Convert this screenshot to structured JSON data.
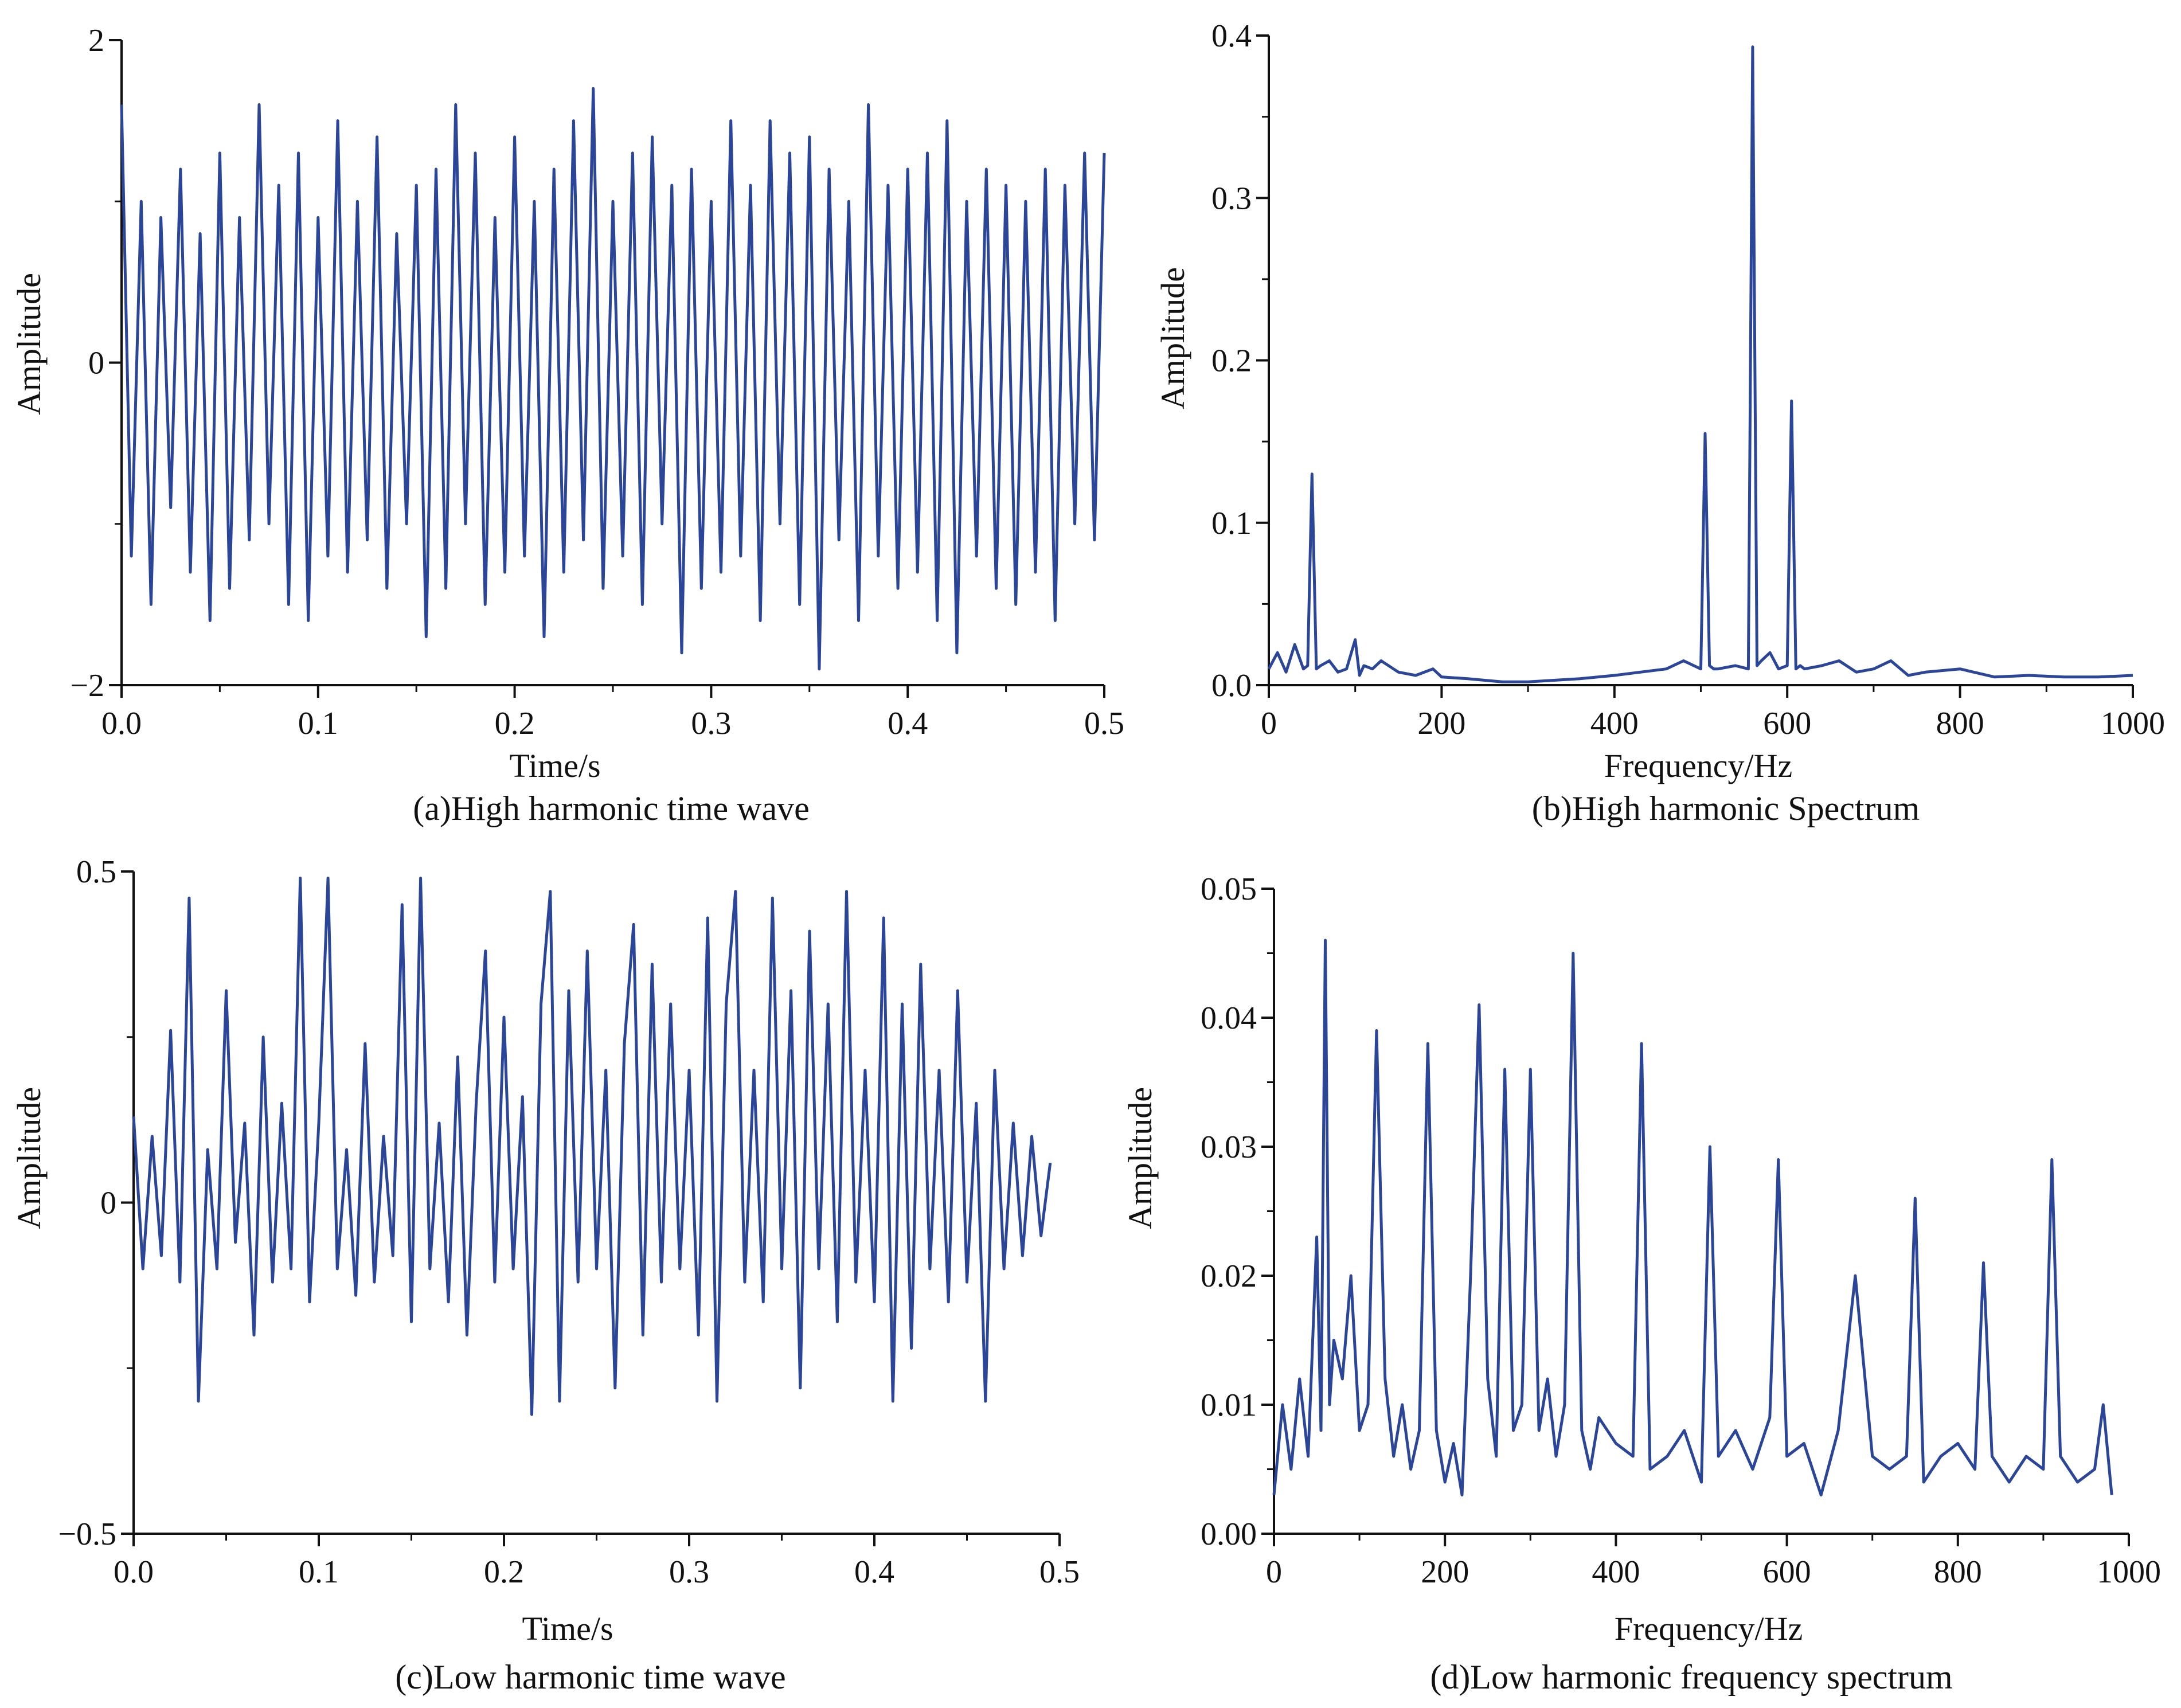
{
  "colors": {
    "series": "#2b4699",
    "axis": "#111111",
    "background": "#ffffff"
  },
  "chart_data": [
    {
      "id": "a",
      "type": "line",
      "caption": "(a)High harmonic time wave",
      "xlabel": "Time/s",
      "ylabel": "Amplitude",
      "xlim": [
        0,
        0.5
      ],
      "ylim": [
        -2,
        2
      ],
      "xticks": [
        0.0,
        0.1,
        0.2,
        0.3,
        0.4,
        0.5
      ],
      "xtick_labels": [
        "0.0",
        "0.1",
        "0.2",
        "0.3",
        "0.4",
        "0.5"
      ],
      "yticks": [
        -2,
        0,
        2
      ],
      "ytick_labels": [
        "−2",
        "0",
        "2"
      ],
      "series": [
        {
          "name": "High harmonic time wave",
          "x": [
            0.0,
            0.005,
            0.01,
            0.015,
            0.02,
            0.025,
            0.03,
            0.035,
            0.04,
            0.045,
            0.05,
            0.055,
            0.06,
            0.065,
            0.07,
            0.075,
            0.08,
            0.085,
            0.09,
            0.095,
            0.1,
            0.105,
            0.11,
            0.115,
            0.12,
            0.125,
            0.13,
            0.135,
            0.14,
            0.145,
            0.15,
            0.155,
            0.16,
            0.165,
            0.17,
            0.175,
            0.18,
            0.185,
            0.19,
            0.195,
            0.2,
            0.205,
            0.21,
            0.215,
            0.22,
            0.225,
            0.23,
            0.235,
            0.24,
            0.245,
            0.25,
            0.255,
            0.26,
            0.265,
            0.27,
            0.275,
            0.28,
            0.285,
            0.29,
            0.295,
            0.3,
            0.305,
            0.31,
            0.315,
            0.32,
            0.325,
            0.33,
            0.335,
            0.34,
            0.345,
            0.35,
            0.355,
            0.36,
            0.365,
            0.37,
            0.375,
            0.38,
            0.385,
            0.39,
            0.395,
            0.4,
            0.405,
            0.41,
            0.415,
            0.42,
            0.425,
            0.43,
            0.435,
            0.44,
            0.445,
            0.45,
            0.455,
            0.46,
            0.465,
            0.47,
            0.475,
            0.48,
            0.485,
            0.49,
            0.495,
            0.5
          ],
          "y": [
            1.6,
            -1.2,
            1.0,
            -1.5,
            0.9,
            -0.9,
            1.2,
            -1.3,
            0.8,
            -1.6,
            1.3,
            -1.4,
            0.9,
            -1.1,
            1.6,
            -1.0,
            1.1,
            -1.5,
            1.3,
            -1.6,
            0.9,
            -1.2,
            1.5,
            -1.3,
            1.0,
            -1.1,
            1.4,
            -1.4,
            0.8,
            -1.0,
            1.1,
            -1.7,
            1.2,
            -1.4,
            1.6,
            -1.0,
            1.3,
            -1.5,
            0.9,
            -1.3,
            1.4,
            -1.2,
            1.0,
            -1.7,
            1.2,
            -1.3,
            1.5,
            -1.1,
            1.7,
            -1.4,
            1.0,
            -1.2,
            1.3,
            -1.5,
            1.4,
            -1.0,
            1.1,
            -1.8,
            1.2,
            -1.4,
            1.0,
            -1.3,
            1.5,
            -1.2,
            1.1,
            -1.6,
            1.5,
            -1.0,
            1.3,
            -1.5,
            1.4,
            -1.9,
            1.2,
            -1.1,
            1.0,
            -1.6,
            1.6,
            -1.2,
            1.1,
            -1.4,
            1.2,
            -1.3,
            1.3,
            -1.6,
            1.5,
            -1.8,
            1.0,
            -1.2,
            1.2,
            -1.4,
            1.1,
            -1.5,
            1.0,
            -1.3,
            1.2,
            -1.6,
            1.1,
            -1.0,
            1.3,
            -1.1,
            1.3
          ]
        }
      ]
    },
    {
      "id": "b",
      "type": "line",
      "caption": "(b)High harmonic Spectrum",
      "xlabel": "Frequency/Hz",
      "ylabel": "Amplitude",
      "xlim": [
        0,
        1000
      ],
      "ylim": [
        0,
        0.4
      ],
      "xticks": [
        0,
        200,
        400,
        600,
        800,
        1000
      ],
      "xtick_labels": [
        "0",
        "200",
        "400",
        "600",
        "800",
        "1000"
      ],
      "yticks": [
        0.0,
        0.1,
        0.2,
        0.3,
        0.4
      ],
      "ytick_labels": [
        "0.0",
        "0.1",
        "0.2",
        "0.3",
        "0.4"
      ],
      "series": [
        {
          "name": "High harmonic spectrum",
          "x": [
            0,
            10,
            20,
            30,
            40,
            45,
            50,
            55,
            60,
            70,
            80,
            90,
            100,
            105,
            110,
            120,
            130,
            150,
            170,
            190,
            200,
            230,
            270,
            300,
            330,
            360,
            400,
            430,
            460,
            480,
            500,
            505,
            510,
            515,
            520,
            540,
            555,
            560,
            565,
            570,
            580,
            590,
            600,
            605,
            610,
            615,
            620,
            640,
            660,
            680,
            700,
            720,
            740,
            760,
            800,
            840,
            880,
            920,
            960,
            1000
          ],
          "y": [
            0.01,
            0.02,
            0.008,
            0.025,
            0.01,
            0.012,
            0.13,
            0.01,
            0.012,
            0.015,
            0.008,
            0.01,
            0.028,
            0.006,
            0.012,
            0.01,
            0.015,
            0.008,
            0.006,
            0.01,
            0.005,
            0.004,
            0.002,
            0.002,
            0.003,
            0.004,
            0.006,
            0.008,
            0.01,
            0.015,
            0.01,
            0.155,
            0.012,
            0.01,
            0.01,
            0.012,
            0.01,
            0.393,
            0.012,
            0.015,
            0.02,
            0.01,
            0.012,
            0.175,
            0.01,
            0.012,
            0.01,
            0.012,
            0.015,
            0.008,
            0.01,
            0.015,
            0.006,
            0.008,
            0.01,
            0.005,
            0.006,
            0.005,
            0.005,
            0.006
          ]
        }
      ]
    },
    {
      "id": "c",
      "type": "line",
      "caption": "(c)Low harmonic time wave",
      "xlabel": "Time/s",
      "ylabel": "Amplitude",
      "xlim": [
        0,
        0.5
      ],
      "ylim": [
        -0.5,
        0.5
      ],
      "xticks": [
        0.0,
        0.1,
        0.2,
        0.3,
        0.4,
        0.5
      ],
      "xtick_labels": [
        "0.0",
        "0.1",
        "0.2",
        "0.3",
        "0.4",
        "0.5"
      ],
      "yticks": [
        -0.5,
        0,
        0.5
      ],
      "ytick_labels": [
        "−0.5",
        "0",
        "0.5"
      ],
      "series": [
        {
          "name": "Low harmonic time wave",
          "x": [
            0.0,
            0.005,
            0.01,
            0.015,
            0.02,
            0.025,
            0.03,
            0.035,
            0.04,
            0.045,
            0.05,
            0.055,
            0.06,
            0.065,
            0.07,
            0.075,
            0.08,
            0.085,
            0.09,
            0.095,
            0.1,
            0.105,
            0.11,
            0.115,
            0.12,
            0.125,
            0.13,
            0.135,
            0.14,
            0.145,
            0.15,
            0.155,
            0.16,
            0.165,
            0.17,
            0.175,
            0.18,
            0.185,
            0.19,
            0.195,
            0.2,
            0.205,
            0.21,
            0.215,
            0.22,
            0.225,
            0.23,
            0.235,
            0.24,
            0.245,
            0.25,
            0.255,
            0.26,
            0.265,
            0.27,
            0.275,
            0.28,
            0.285,
            0.29,
            0.295,
            0.3,
            0.305,
            0.31,
            0.315,
            0.32,
            0.325,
            0.33,
            0.335,
            0.34,
            0.345,
            0.35,
            0.355,
            0.36,
            0.365,
            0.37,
            0.375,
            0.38,
            0.385,
            0.39,
            0.395,
            0.4,
            0.405,
            0.41,
            0.415,
            0.42,
            0.425,
            0.43,
            0.435,
            0.44,
            0.445,
            0.45,
            0.455,
            0.46,
            0.465,
            0.47,
            0.475,
            0.48,
            0.485,
            0.49,
            0.495
          ],
          "y": [
            0.13,
            -0.1,
            0.1,
            -0.08,
            0.26,
            -0.12,
            0.46,
            -0.3,
            0.08,
            -0.1,
            0.32,
            -0.06,
            0.12,
            -0.2,
            0.25,
            -0.12,
            0.15,
            -0.1,
            0.49,
            -0.15,
            0.12,
            0.49,
            -0.1,
            0.08,
            -0.14,
            0.24,
            -0.12,
            0.1,
            -0.08,
            0.45,
            -0.18,
            0.49,
            -0.1,
            0.12,
            -0.15,
            0.22,
            -0.2,
            0.15,
            0.38,
            -0.12,
            0.28,
            -0.1,
            0.16,
            -0.32,
            0.3,
            0.47,
            -0.3,
            0.32,
            -0.12,
            0.38,
            -0.1,
            0.2,
            -0.28,
            0.24,
            0.42,
            -0.2,
            0.36,
            -0.12,
            0.3,
            -0.1,
            0.2,
            -0.2,
            0.43,
            -0.3,
            0.3,
            0.47,
            -0.12,
            0.2,
            -0.15,
            0.46,
            -0.1,
            0.32,
            -0.28,
            0.41,
            -0.1,
            0.3,
            -0.18,
            0.47,
            -0.12,
            0.2,
            -0.15,
            0.43,
            -0.3,
            0.3,
            -0.22,
            0.36,
            -0.1,
            0.2,
            -0.15,
            0.32,
            -0.12,
            0.15,
            -0.3,
            0.2,
            -0.1,
            0.12,
            -0.08,
            0.1,
            -0.05,
            0.06
          ]
        }
      ]
    },
    {
      "id": "d",
      "type": "line",
      "caption": "(d)Low harmonic frequency spectrum",
      "xlabel": "Frequency/Hz",
      "ylabel": "Amplitude",
      "xlim": [
        0,
        1000
      ],
      "ylim": [
        0,
        0.05
      ],
      "xticks": [
        0,
        200,
        400,
        600,
        800,
        1000
      ],
      "xtick_labels": [
        "0",
        "200",
        "400",
        "600",
        "800",
        "1000"
      ],
      "yticks": [
        0.0,
        0.01,
        0.02,
        0.03,
        0.04,
        0.05
      ],
      "ytick_labels": [
        "0.00",
        "0.01",
        "0.02",
        "0.03",
        "0.04",
        "0.05"
      ],
      "series": [
        {
          "name": "Low harmonic frequency spectrum",
          "x": [
            0,
            10,
            20,
            30,
            40,
            50,
            55,
            60,
            65,
            70,
            80,
            90,
            100,
            110,
            120,
            130,
            140,
            150,
            160,
            170,
            180,
            190,
            200,
            210,
            220,
            230,
            240,
            250,
            260,
            270,
            280,
            290,
            300,
            310,
            320,
            330,
            340,
            350,
            360,
            370,
            380,
            400,
            420,
            430,
            440,
            460,
            480,
            500,
            510,
            520,
            540,
            560,
            580,
            590,
            600,
            620,
            640,
            660,
            680,
            700,
            720,
            740,
            750,
            760,
            780,
            800,
            820,
            830,
            840,
            860,
            880,
            900,
            910,
            920,
            940,
            960,
            970,
            980
          ],
          "y": [
            0.003,
            0.01,
            0.005,
            0.012,
            0.006,
            0.023,
            0.008,
            0.046,
            0.01,
            0.015,
            0.012,
            0.02,
            0.008,
            0.01,
            0.039,
            0.012,
            0.006,
            0.01,
            0.005,
            0.008,
            0.038,
            0.008,
            0.004,
            0.007,
            0.003,
            0.02,
            0.041,
            0.012,
            0.006,
            0.036,
            0.008,
            0.01,
            0.036,
            0.008,
            0.012,
            0.006,
            0.01,
            0.045,
            0.008,
            0.005,
            0.009,
            0.007,
            0.006,
            0.038,
            0.005,
            0.006,
            0.008,
            0.004,
            0.03,
            0.006,
            0.008,
            0.005,
            0.009,
            0.029,
            0.006,
            0.007,
            0.003,
            0.008,
            0.02,
            0.006,
            0.005,
            0.006,
            0.026,
            0.004,
            0.006,
            0.007,
            0.005,
            0.021,
            0.006,
            0.004,
            0.006,
            0.005,
            0.029,
            0.006,
            0.004,
            0.005,
            0.01,
            0.003
          ]
        }
      ]
    }
  ]
}
